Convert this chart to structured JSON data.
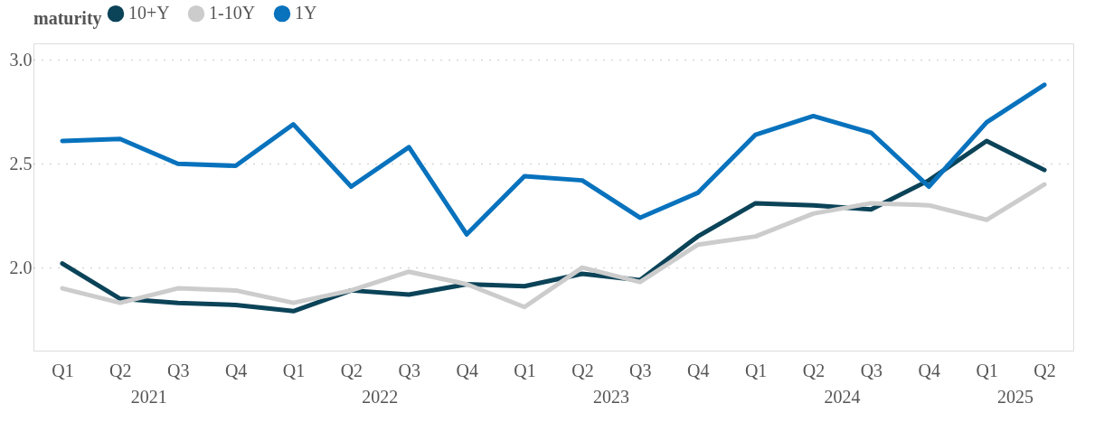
{
  "chart_data": {
    "type": "line",
    "legend_title": "maturity",
    "legend": "top left",
    "grid": "y",
    "marker": "none",
    "line_style": "solid",
    "categories": [
      "Q1",
      "Q2",
      "Q3",
      "Q4",
      "Q1",
      "Q2",
      "Q3",
      "Q4",
      "Q1",
      "Q2",
      "Q3",
      "Q4",
      "Q1",
      "Q2",
      "Q3",
      "Q4",
      "Q1",
      "Q2"
    ],
    "ylim": [
      1.6,
      3.08
    ],
    "yticks": [
      {
        "value": 2,
        "label": "2.0"
      },
      {
        "value": 2.5,
        "label": "2.5"
      },
      {
        "value": 3,
        "label": "3.0"
      }
    ],
    "series": [
      {
        "name": "10+Y",
        "color": "#0b4358",
        "values": [
          2.02,
          1.85,
          1.83,
          1.82,
          1.79,
          1.89,
          1.87,
          1.92,
          1.91,
          1.97,
          1.94,
          2.15,
          2.31,
          2.3,
          2.28,
          2.42,
          2.61,
          2.47
        ]
      },
      {
        "name": "1-10Y",
        "color": "#cccccc",
        "values": [
          1.9,
          1.83,
          1.9,
          1.89,
          1.83,
          1.89,
          1.98,
          1.92,
          1.81,
          2.0,
          1.93,
          2.11,
          2.15,
          2.26,
          2.31,
          2.3,
          2.23,
          2.4
        ]
      },
      {
        "name": "1Y",
        "color": "#0872bd",
        "values": [
          2.61,
          2.62,
          2.5,
          2.49,
          2.69,
          2.39,
          2.58,
          2.16,
          2.44,
          2.42,
          2.24,
          2.36,
          2.64,
          2.73,
          2.65,
          2.39,
          2.7,
          2.88
        ]
      }
    ],
    "annotations": [
      "2021",
      "2022",
      "2023",
      "2024",
      "2025"
    ]
  }
}
